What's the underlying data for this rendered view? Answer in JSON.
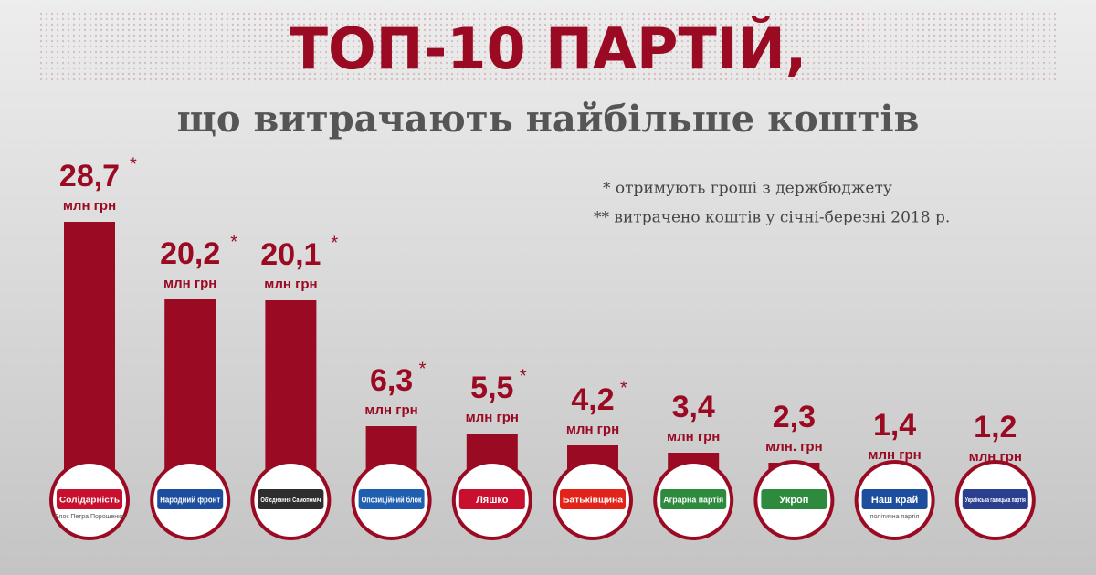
{
  "chart_data": {
    "type": "bar",
    "title": "ТОП-10 ПАРТІЙ,",
    "subtitle": "що витрачають найбільше коштів",
    "annotations": [
      "* отримують гроші з держбюджету",
      "** витрачено коштів у січні-березні 2018 р."
    ],
    "categories": [
      "Солідарність",
      "Народний фронт",
      "Об'єднання Самопоміч",
      "Опозиційний блок",
      "Ляшко",
      "Батьківщина",
      "Аграрна партія",
      "Укроп",
      "Наш край",
      "Українська галицька партія"
    ],
    "category_sublabels": [
      "Блок Петра Порошенка",
      null,
      null,
      null,
      null,
      null,
      null,
      null,
      "політична партія",
      null
    ],
    "logo_colors": [
      "#c8102e",
      "#1d4e9e",
      "#2e2e2e",
      "#1f5fb0",
      "#c8102e",
      "#e2231a",
      "#2e8b3d",
      "#2e8b3d",
      "#1d4e9e",
      "#2b3f8f"
    ],
    "values": [
      28.7,
      20.2,
      20.1,
      6.3,
      5.5,
      4.2,
      3.4,
      2.3,
      1.4,
      1.2
    ],
    "value_labels": [
      "28,7",
      "20,2",
      "20,1",
      "6,3",
      "5,5",
      "4,2",
      "3,4",
      "2,3",
      "1,4",
      "1,2"
    ],
    "value_notes": [
      "*",
      "*",
      "*",
      "*",
      "*",
      "*",
      null,
      null,
      null,
      null
    ],
    "units": [
      "млн грн",
      "млн грн",
      "млн грн",
      "млн грн",
      "млн грн",
      "млн грн",
      "млн грн",
      "млн. грн",
      "млн грн",
      "млн грн"
    ],
    "color": "#9b0a23"
  }
}
